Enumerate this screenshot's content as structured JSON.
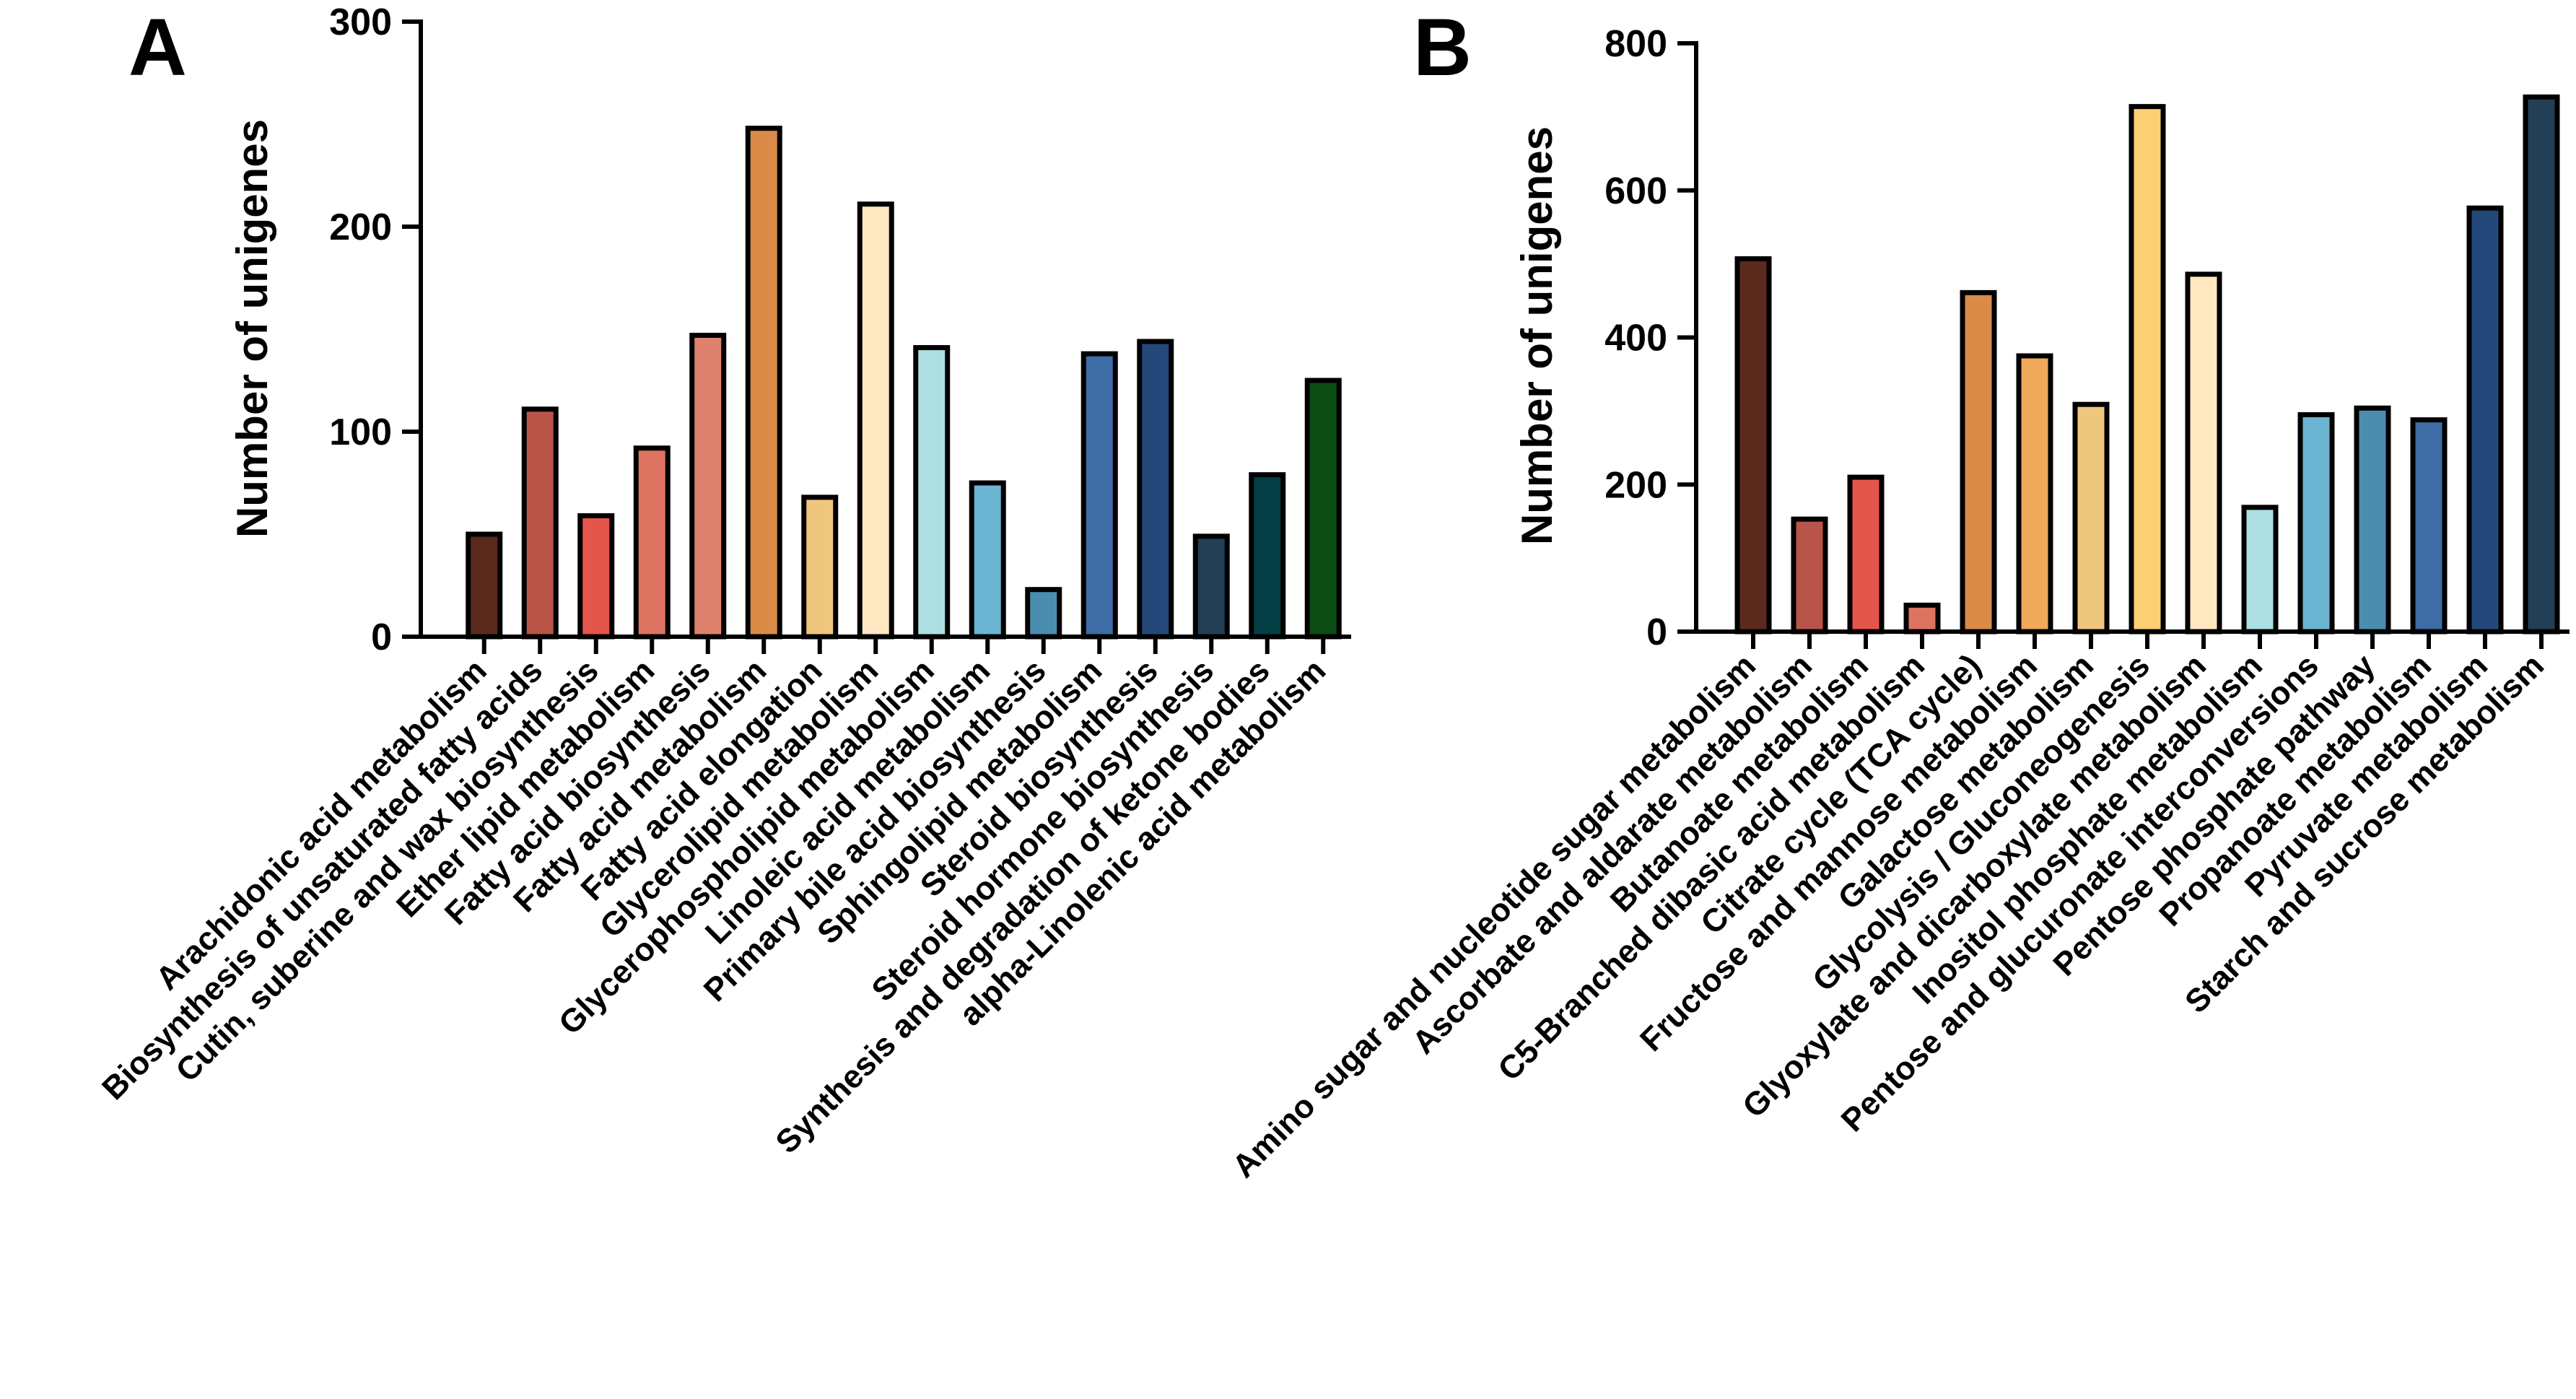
{
  "chart_data": [
    {
      "panel": "A",
      "type": "bar",
      "ylabel": "Number of unigenes",
      "ylim": [
        0,
        300
      ],
      "yticks": [
        0,
        100,
        200,
        300
      ],
      "categories": [
        "Arachidonic acid metabolism",
        "Biosynthesis of unsaturated fatty acids",
        "Cutin, suberine and wax biosynthesis",
        "Ether lipid metabolism",
        "Fatty acid biosynthesis",
        "Fatty acid metabolism",
        "Fatty acid elongation",
        "Glycerolipid metabolism",
        "Glycerophospholipid metabolism",
        "Linoleic acid metabolism",
        "Primary bile acid biosynthesis",
        "Sphingolipid metabolism",
        "Steroid biosynthesis",
        "Steroid hormone biosynthesis",
        "Synthesis and degradation of ketone bodies",
        "alpha-Linolenic acid metabolism"
      ],
      "values": [
        50,
        111,
        59,
        92,
        147,
        248,
        68,
        211,
        141,
        75,
        23,
        138,
        144,
        49,
        79,
        125
      ],
      "colors": [
        "#5a2a1c",
        "#b85548",
        "#e4564b",
        "#dd7462",
        "#de826e",
        "#d98b47",
        "#efc67e",
        "#fde8c2",
        "#aedfe2",
        "#6bb5d2",
        "#4b8daf",
        "#3d6da4",
        "#24487a",
        "#233f55",
        "#043e45",
        "#0b4d13"
      ]
    },
    {
      "panel": "B",
      "type": "bar",
      "ylabel": "Number of unigenes",
      "ylim": [
        0,
        800
      ],
      "yticks": [
        0,
        200,
        400,
        600,
        800
      ],
      "categories": [
        "Amino sugar and nucleotide sugar metabolism",
        "Ascorbate and aldarate metabolism",
        "Butanoate metabolism",
        "C5-Branched dibasic acid metabolism",
        "Citrate cycle (TCA cycle)",
        "Fructose and mannose metabolism",
        "Galactose metabolism",
        "Glycolysis / Gluconeogenesis",
        "Glyoxylate and dicarboxylate metabolism",
        "Inositol phosphate metabolism",
        "Pentose and glucuronate interconversions",
        "Pentose phosphate pathway",
        "Propanoate metabolism",
        "Pyruvate metabolism",
        "Starch and sucrose metabolism"
      ],
      "values": [
        507,
        153,
        210,
        36,
        461,
        375,
        309,
        714,
        486,
        169,
        295,
        304,
        288,
        576,
        727
      ],
      "colors": [
        "#5a2a1c",
        "#b85548",
        "#e4564b",
        "#dd7462",
        "#d98b47",
        "#f0a85a",
        "#efc67e",
        "#fdcf74",
        "#fde8c2",
        "#aedfe2",
        "#6bb5d2",
        "#4b8daf",
        "#3d6da4",
        "#24487a",
        "#233f55"
      ]
    }
  ]
}
